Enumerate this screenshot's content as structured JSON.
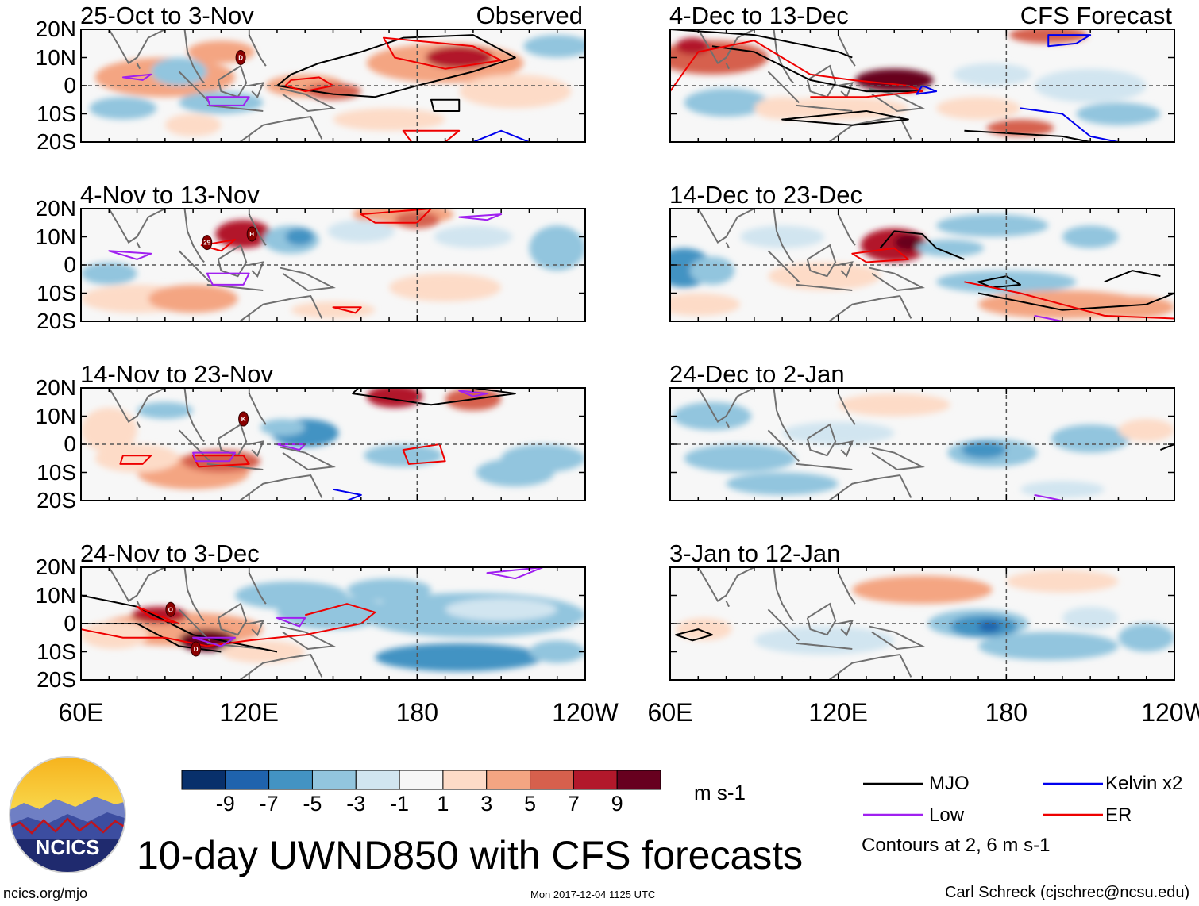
{
  "chart_data": {
    "type": "heatmap",
    "title": "10-day UWND850 with CFS forecasts",
    "variable": "850-hPa zonal wind anomaly",
    "units": "m s-1",
    "observed_label": "Observed",
    "forecast_label": "CFS Forecast",
    "lat_ticks": [
      "20N",
      "10N",
      "0",
      "10S",
      "20S"
    ],
    "lat_values": [
      20,
      10,
      0,
      -10,
      -20
    ],
    "lon_ticks": [
      "60E",
      "120E",
      "180",
      "120W"
    ],
    "lon_values": [
      60,
      120,
      180,
      240
    ],
    "lon_range": [
      60,
      240
    ],
    "lat_range": [
      -20,
      20
    ],
    "panels": [
      {
        "period": "25-Oct to 3-Nov",
        "source": "Observed",
        "storms": [
          "D"
        ]
      },
      {
        "period": "4-Nov to 13-Nov",
        "source": "Observed",
        "storms": [
          "H",
          "29"
        ]
      },
      {
        "period": "14-Nov to 23-Nov",
        "source": "Observed",
        "storms": [
          "K"
        ]
      },
      {
        "period": "24-Nov to 3-Dec",
        "source": "Observed",
        "storms": [
          "O",
          "D"
        ]
      },
      {
        "period": "4-Dec to 13-Dec",
        "source": "CFS Forecast",
        "storms": []
      },
      {
        "period": "14-Dec to 23-Dec",
        "source": "CFS Forecast",
        "storms": []
      },
      {
        "period": "24-Dec to 2-Jan",
        "source": "CFS Forecast",
        "storms": []
      },
      {
        "period": "3-Jan to 12-Jan",
        "source": "CFS Forecast",
        "storms": []
      }
    ],
    "colorbar": {
      "ticks": [
        "-9",
        "-7",
        "-5",
        "-3",
        "-1",
        "1",
        "3",
        "5",
        "7",
        "9"
      ],
      "colors": [
        "#08306b",
        "#1f63ad",
        "#4393c3",
        "#92c5de",
        "#d1e5f0",
        "#f7f7f7",
        "#fddbc7",
        "#f4a582",
        "#d6604d",
        "#b2182b",
        "#67001f"
      ],
      "units": "m s-1"
    },
    "legend": [
      {
        "name": "MJO",
        "color": "#000000"
      },
      {
        "name": "Kelvin x2",
        "color": "#0000ee"
      },
      {
        "name": "Low",
        "color": "#a020f0"
      },
      {
        "name": "ER",
        "color": "#ee0000"
      }
    ],
    "contour_note": "Contours at 2, 6 m s-1"
  },
  "footer": {
    "logo_text": "NCICS",
    "url": "ncics.org/mjo",
    "timestamp": "Mon 2017-12-04 1125 UTC",
    "author": "Carl Schreck (cjschrec@ncsu.edu)"
  }
}
